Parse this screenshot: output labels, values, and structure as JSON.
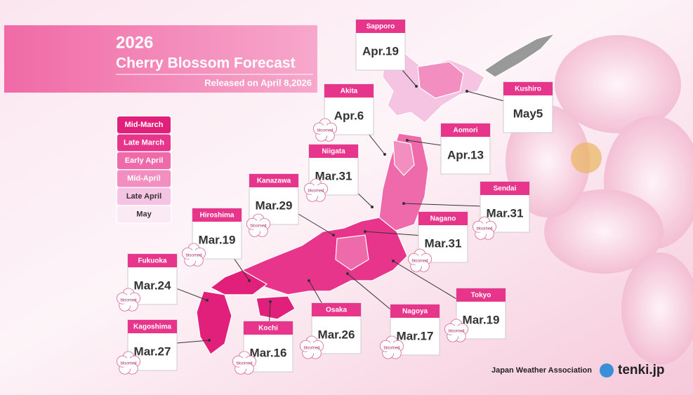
{
  "header": {
    "year": "2026",
    "title": "Cherry Blossom Forecast",
    "released": "Released on April 8,2026"
  },
  "legend": [
    {
      "label": "Mid-March",
      "color": "#e0207a"
    },
    {
      "label": "Late March",
      "color": "#e8358c"
    },
    {
      "label": "Early April",
      "color": "#ee6aaa"
    },
    {
      "label": "Mid-April",
      "color": "#f28ec0"
    },
    {
      "label": "Late April",
      "color": "#f5c4e2"
    },
    {
      "label": "May",
      "color": "#fbeaf4"
    }
  ],
  "cities": [
    {
      "name": "Sapporo",
      "date": "Apr.19"
    },
    {
      "name": "Kushiro",
      "date": "May5"
    },
    {
      "name": "Akita",
      "date": "Apr.6",
      "badge": "bloomed"
    },
    {
      "name": "Aomori",
      "date": "Apr.13"
    },
    {
      "name": "Niigata",
      "date": "Mar.31",
      "badge": "bloomed"
    },
    {
      "name": "Sendai",
      "date": "Mar.31",
      "badge": "bloomed"
    },
    {
      "name": "Kanazawa",
      "date": "Mar.29",
      "badge": "bloomed"
    },
    {
      "name": "Nagano",
      "date": "Mar.31",
      "badge": "bloomed"
    },
    {
      "name": "Hiroshima",
      "date": "Mar.19",
      "badge": "bloomed"
    },
    {
      "name": "Fukuoka",
      "date": "Mar.24",
      "badge": "bloomed"
    },
    {
      "name": "Tokyo",
      "date": "Mar.19",
      "badge": "bloomed"
    },
    {
      "name": "Kagoshima",
      "date": "Mar.27",
      "badge": "bloomed"
    },
    {
      "name": "Kochi",
      "date": "Mar.16",
      "badge": "bloomed"
    },
    {
      "name": "Osaka",
      "date": "Mar.26",
      "badge": "bloomed"
    },
    {
      "name": "Nagoya",
      "date": "Mar.17",
      "badge": "bloomed"
    }
  ],
  "footer": {
    "organization": "Japan Weather Association",
    "brand": "tenki.jp"
  }
}
